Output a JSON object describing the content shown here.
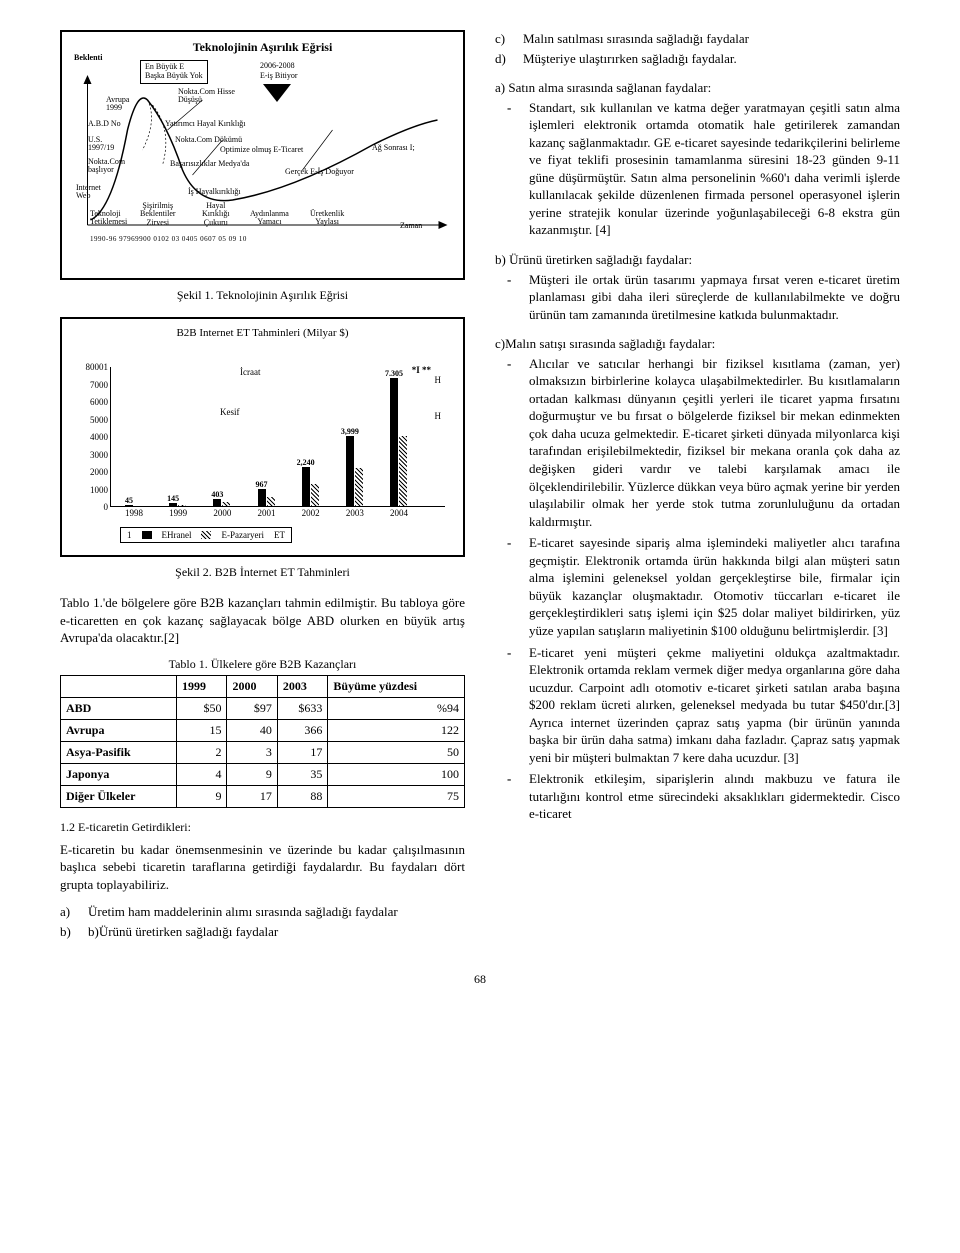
{
  "fig1": {
    "title": "Teknolojinin Aşırılık Eğrisi",
    "box_line1": "En Büyük E",
    "box_line2": "Başka Büyük Yok",
    "label_beklenti": "Beklenti",
    "label_2006": "2006-2008",
    "label_eis": "E-iş Bitiyor",
    "label_avrupa": "Avrupa\n1999",
    "label_nokta_hisse": "Nokta.Com Hisse\nDüşüşü",
    "label_abd": "A.B.D No",
    "label_yatirimci": "Yatırımcı Hayal Kırıklığı",
    "label_us": "U.S.\n1997/19",
    "label_dokumu": "Nokta.Com Dökümü",
    "label_optimize": "Optimize olmuş E-Ticaret",
    "label_ag": "Ağ Sonrası I;",
    "label_noktacom": "Nokta.Com\nbaşlıyor",
    "label_basari": "Başarısızlıklar Medya'da",
    "label_gercek": "Gerçek E-İş Doğuyor",
    "label_internet": "Internet\nWeb",
    "label_hayal": "İş Hayalkırıklığı",
    "label_sisirilmis": "Şişirilmiş\nBeklentiler\nZirvesi",
    "label_teknoloji": "Teknoloji\nTetiklemesi",
    "label_hayalk": "Hayal\nKırıklığı\nÇukuru",
    "label_aydinlanma": "Aydınlanma\nYamacı",
    "label_uretkenlik": "Üretkenlik\nYaylası",
    "label_zaman": "Zaman",
    "timeline": "1990-96 97969900 0102 03 0405 0607 05 09 10",
    "caption": "Şekil 1. Teknolojinin Aşırılık Eğrisi"
  },
  "fig2": {
    "title": "B2B Internet ET Tahminleri (Milyar $)",
    "y_ticks": [
      "80001",
      "7000",
      "6000",
      "5000",
      "4000",
      "3000",
      "2000",
      "1000",
      "0"
    ],
    "x_ticks": [
      "1998",
      "1999",
      "2000",
      "2001",
      "2002",
      "2003",
      "2004"
    ],
    "bars": [
      {
        "x": 0,
        "v1": 45,
        "v2": null,
        "l1": "45"
      },
      {
        "x": 1,
        "v1": 145,
        "v2": null,
        "l1": "145"
      },
      {
        "x": 2,
        "v1": 403,
        "v2": null,
        "l1": "403"
      },
      {
        "x": 3,
        "v1": 967,
        "v2": null,
        "l1": "967"
      },
      {
        "x": 4,
        "v1": 2240,
        "v2": null,
        "l1": "2,240"
      },
      {
        "x": 5,
        "v1": 3999,
        "v2": null,
        "l1": "3,999"
      },
      {
        "x": 6,
        "v1": 7305,
        "v2": null,
        "l1": "7.305"
      }
    ],
    "anno_icraat": "İcraat",
    "anno_kesif": "Kesif",
    "anno_h": "H",
    "anno_star": "*I **",
    "legend1": "EHranel",
    "legend2": "E-Pazaryeri",
    "legend3": "ET",
    "legend_num": "1",
    "caption": "Şekil 2. B2B İnternet ET Tahminleri"
  },
  "left_para1": "Tablo 1.'de bölgelere göre B2B kazançları tahmin edilmiştir. Bu tabloya göre e-ticaretten en çok kazanç sağlayacak bölge ABD olurken en büyük artış Avrupa'da olacaktır.[2]",
  "table1": {
    "caption": "Tablo 1. Ülkelere göre B2B Kazançları",
    "headers": [
      "",
      "1999",
      "2000",
      "2003",
      "Büyüme yüzdesi"
    ],
    "rows": [
      [
        "ABD",
        "$50",
        "$97",
        "$633",
        "%94"
      ],
      [
        "Avrupa",
        "15",
        "40",
        "366",
        "122"
      ],
      [
        "Asya-Pasifik",
        "2",
        "3",
        "17",
        "50"
      ],
      [
        "Japonya",
        "4",
        "9",
        "35",
        "100"
      ],
      [
        "Diğer Ülkeler",
        "9",
        "17",
        "88",
        "75"
      ]
    ]
  },
  "section12": "1.2 E-ticaretin Getirdikleri:",
  "left_para2": "E-ticaretin bu kadar önemsenmesinin ve üzerinde bu kadar çalışılmasının başlıca sebebi ticaretin taraflarına getirdiği faydalardır. Bu faydaları dört grupta toplayabiliriz.",
  "left_list": {
    "a": "Üretim ham maddelerinin alımı sırasında sağladığı faydalar",
    "b": "b)Ürünü üretirken sağladığı faydalar"
  },
  "right_list_top": {
    "c": "Malın satılması sırasında sağladığı faydalar",
    "d": "Müşteriye ulaştırırken sağladığı faydalar."
  },
  "right_a_head": "a) Satın alma sırasında sağlanan faydalar:",
  "right_a_body": "Standart, sık kullanılan ve katma değer yaratmayan çeşitli satın alma işlemleri elektronik ortamda otomatik hale getirilerek zamandan kazanç sağlanmaktadır. GE e-ticaret sayesinde tedarikçilerini belirleme ve fiyat teklifi prosesinin tamamlanma süresini 18-23 günden 9-11 güne düşürmüştür. Satın alma personelinin %60'ı daha verimli işlerde kullanılacak şekilde düzenlenen firmada personel operasyonel işlerin yerine stratejik konular üzerinde yoğunlaşabileceği 6-8 ekstra gün kazanmıştır. [4]",
  "right_b_head": "b) Ürünü üretirken sağladığı faydalar:",
  "right_b_body": "Müşteri ile ortak ürün tasarımı yapmaya fırsat veren e-ticaret üretim planlaması gibi daha ileri süreçlerde de kullanılabilmekte ve doğru ürünün tam zamanında üretilmesine katkıda bulunmaktadır.",
  "right_c_head": "c)Malın satışı sırasında sağladığı faydalar:",
  "right_c_items": [
    "Alıcılar ve satıcılar herhangi bir fiziksel kısıtlama (zaman, yer) olmaksızın birbirlerine kolayca ulaşabilmektedirler. Bu kısıtlamaların ortadan kalkması dünyanın çeşitli yerleri ile ticaret yapma fırsatını doğurmuştur ve bu fırsat o bölgelerde fiziksel bir mekan edinmekten çok daha ucuza gelmektedir. E-ticaret şirketi dünyada milyonlarca kişi tarafından erişilebilmektedir, fiziksel bir mekana oranla çok daha az değişken gideri vardır ve talebi karşılamak amacı ile ölçeklendirilebilir. Yüzlerce dükkan veya büro açmak yerine bir yerden ulaşılabilir olmak her yerde stok tutma zorunluluğunu da ortadan kaldırmıştır.",
    "E-ticaret sayesinde sipariş alma işlemindeki maliyetler alıcı tarafına geçmiştir. Elektronik ortamda ürün hakkında bilgi alan müşteri satın alma işlemini geleneksel yoldan gerçekleştirse bile, firmalar için büyük kazançlar oluşmaktadır. Otomotiv tüccarları e-ticaret ile gerçekleştirdikleri satış işlemi için $25 dolar maliyet bildirirken, yüz yüze yapılan satışların maliyetinin $100 olduğunu belirtmişlerdir. [3]",
    "E-ticaret yeni müşteri çekme maliyetini oldukça azaltmaktadır. Elektronik ortamda reklam vermek diğer medya organlarına göre daha ucuzdur. Carpoint adlı otomotiv e-ticaret şirketi satılan araba başına $200 reklam ücreti alırken, geleneksel medyada bu tutar $450'dır.[3] Ayrıca internet üzerinden çapraz satış yapma (bir ürünün yanında başka bir ürün daha satma) imkanı daha fazladır. Çapraz satış yapmak yeni bir müşteri bulmaktan 7 kere daha ucuzdur. [3]",
    "Elektronik etkileşim, siparişlerin alındı makbuzu ve fatura ile tutarlığını kontrol etme sürecindeki aksaklıkları gidermektedir. Cisco e-ticaret"
  ],
  "page_number": "68"
}
